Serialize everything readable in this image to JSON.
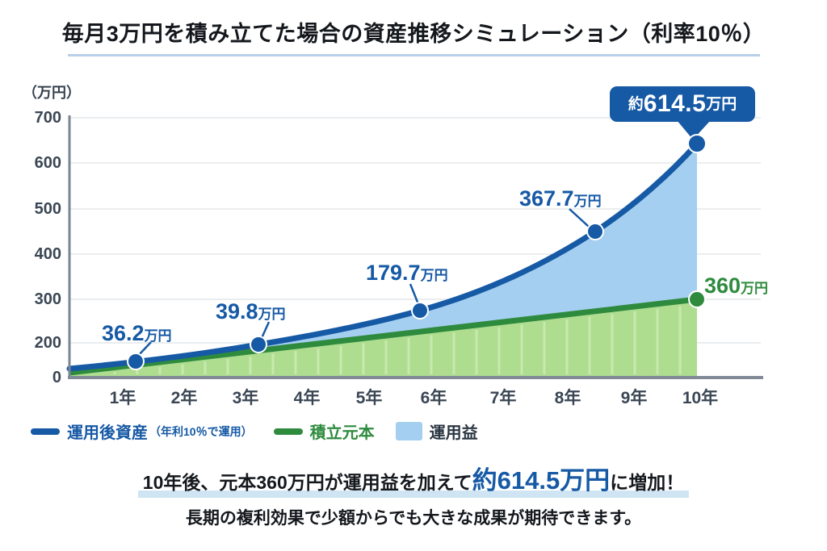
{
  "title": "毎月3万円を積み立てた場合の資産推移シミュレーション（利率10％）",
  "colors": {
    "accent_blue": "#1659a5",
    "principal_green": "#2e8b3e",
    "gain_light_blue": "#a5cff0",
    "principal_fill_green": "#aedd90",
    "highlight_underline": "#cfe5f4",
    "axis_gray": "#818b97"
  },
  "chart_data": {
    "type": "area",
    "title": "毎月3万円を積み立てた場合の資産推移シミュレーション（利率10％）",
    "monthly_contribution_label": "毎月3万円",
    "interest_rate_label": "利率10％",
    "x_axis": {
      "tick_labels": [
        "1年",
        "2年",
        "3年",
        "4年",
        "5年",
        "6年",
        "7年",
        "8年",
        "9年",
        "10年"
      ]
    },
    "y_axis": {
      "unit_label": "（万円）",
      "tick_labels": [
        "700",
        "600",
        "500",
        "400",
        "300",
        "200",
        "0"
      ],
      "ylim": [
        0,
        700
      ]
    },
    "series": [
      {
        "name": "運用後資産（年利10％で運用）",
        "kind": "line",
        "color": "#1659a5",
        "points": [
          {
            "year": 1,
            "value": 36.2,
            "label_value": "36.2",
            "label_unit": "万円"
          },
          {
            "year": 3,
            "value": 39.8,
            "label_value": "39.8",
            "label_unit": "万円"
          },
          {
            "year": 6,
            "value": 179.7,
            "label_value": "179.7",
            "label_unit": "万円"
          },
          {
            "year": 8.5,
            "value": 367.7,
            "label_value": "367.7",
            "label_unit": "万円"
          },
          {
            "year": 10,
            "value": 614.5,
            "label_prefix": "約",
            "label_value": "614.5",
            "label_unit": "万円"
          }
        ]
      },
      {
        "name": "積立元本",
        "kind": "line",
        "color": "#2e8b3e",
        "end_point": {
          "year": 10,
          "value": 360,
          "label_value": "360",
          "label_unit": "万円"
        }
      },
      {
        "name": "運用益",
        "kind": "area",
        "color": "#a5cff0"
      }
    ],
    "legend_position": "bottom"
  },
  "legend": {
    "items": [
      {
        "label": "運用後資産",
        "sublabel": "（年利10％で運用）",
        "color": "#1659a5",
        "swatch": "line"
      },
      {
        "label": "積立元本",
        "sublabel": "",
        "color": "#2e8b3e",
        "swatch": "line"
      },
      {
        "label": "運用益",
        "sublabel": "",
        "color": "#a5cff0",
        "swatch": "square"
      }
    ]
  },
  "footer": {
    "line1_pre": "10年後、元本360万円が運用益を加えて",
    "line1_emphasis": "約614.5万円",
    "line1_post": "に増加！",
    "line2": "長期の複利効果で少額からでも大きな成果が期待できます。"
  }
}
